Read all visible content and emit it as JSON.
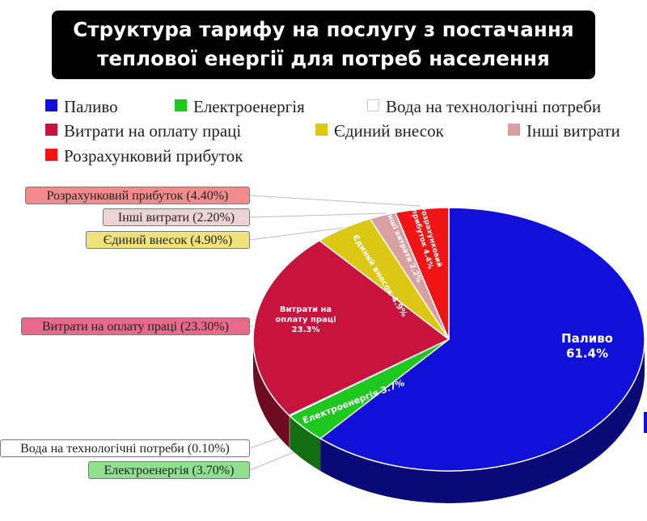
{
  "title": {
    "line1": "Структура тарифу на послугу з постачання",
    "line2": "теплової енергії для потреб населення"
  },
  "legend": [
    {
      "name": "Паливо",
      "color": "#1010d8"
    },
    {
      "name": "Електроенергія",
      "color": "#1ec81e"
    },
    {
      "name": "Вода на технологічні потреби",
      "color": "#ffffff"
    },
    {
      "name": "Витрати на оплату праці",
      "color": "#c8143c"
    },
    {
      "name": "Єдиний внесок",
      "color": "#dcc814"
    },
    {
      "name": "Інші витрати",
      "color": "#d8a0a0"
    },
    {
      "name": "Розрахунковий прибуток",
      "color": "#f01414"
    }
  ],
  "callouts": [
    {
      "text": "Розрахунковий прибуток (4.40%)",
      "bg": "#f28c8c"
    },
    {
      "text": "Інші витрати (2.20%)",
      "bg": "#ecd4d4"
    },
    {
      "text": "Єдиний внесок (4.90%)",
      "bg": "#f0e27a"
    },
    {
      "text": "Витрати на оплату праці (23.30%)",
      "bg": "#e86a8a"
    },
    {
      "text": "Вода на технологічні потреби (0.10%)",
      "bg": "#ffffff"
    },
    {
      "text": "Електроенергія (3.70%)",
      "bg": "#8fe08f"
    }
  ],
  "chart_data": {
    "type": "pie",
    "title": "Структура тарифу на послугу з постачання теплової енергії для потреб населення",
    "categories": [
      "Паливо",
      "Електроенергія",
      "Вода на технологічні потреби",
      "Витрати на оплату праці",
      "Єдиний внесок",
      "Інші витрати",
      "Розрахунковий прибуток"
    ],
    "values": [
      61.4,
      3.7,
      0.1,
      23.3,
      4.9,
      2.2,
      4.4
    ],
    "unit": "%",
    "colors": [
      "#1010d8",
      "#1ec81e",
      "#ffffff",
      "#c8143c",
      "#dcc814",
      "#d8a0a0",
      "#f01414"
    ],
    "slice_labels": [
      [
        "Паливо",
        "61.4%"
      ],
      [
        "Електроенергія 3.7%"
      ],
      [
        ""
      ],
      [
        "Витрати на",
        "оплату праці",
        "23.3%"
      ],
      [
        "Єдиний внесок 4.9%"
      ],
      [
        "Інші витрати 2.2%"
      ],
      [
        "Розрахунковий",
        "прибуток 4.4%"
      ]
    ],
    "legend_position": "top",
    "style": "3d-pie"
  }
}
